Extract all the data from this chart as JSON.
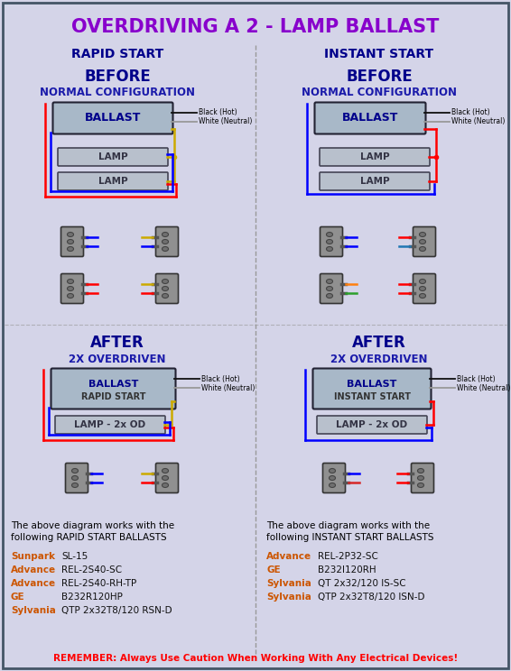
{
  "title": "OVERDRIVING A 2 - LAMP BALLAST",
  "title_color": "#8800CC",
  "bg_color": "#D4D4E8",
  "left_header": "RAPID START",
  "right_header": "INSTANT START",
  "header_color": "#00008B",
  "before_color": "#00008B",
  "normal_config_color": "#1a1aaa",
  "after_color": "#00008B",
  "overdriven_color": "#1a1aaa",
  "ballast_fill": "#A8B8C8",
  "ballast_text": "BALLAST",
  "lamp_fill": "#B8C0CC",
  "lamp_text": "LAMP",
  "rapid_start_text": "RAPID START",
  "instant_start_text": "INSTANT START",
  "lamp_od_text": "LAMP - 2x OD",
  "wire_red": "#FF0000",
  "wire_blue": "#0000FF",
  "wire_yellow": "#CCAA00",
  "wire_black": "#111111",
  "wire_gray": "#999999",
  "left_ballast_list_intro1": "The above diagram works with the",
  "left_ballast_list_intro2": "following RAPID START BALLASTS",
  "right_ballast_list_intro1": "The above diagram works with the",
  "right_ballast_list_intro2": "following INSTANT START BALLASTS",
  "left_ballasts": [
    [
      "Sunpark",
      "SL-15"
    ],
    [
      "Advance",
      "REL-2S40-SC"
    ],
    [
      "Advance",
      "REL-2S40-RH-TP"
    ],
    [
      "GE",
      "B232R120HP"
    ],
    [
      "Sylvania",
      "QTP 2x32T8/120 RSN-D"
    ]
  ],
  "right_ballasts": [
    [
      "Advance",
      "REL-2P32-SC"
    ],
    [
      "GE",
      "B232I120RH"
    ],
    [
      "Sylvania",
      "QT 2x32/120 IS-SC"
    ],
    [
      "Sylvania",
      "QTP 2x32T8/120 ISN-D"
    ]
  ],
  "brand_color": "#CC5500",
  "model_color": "#111111",
  "remember_text": "REMEMBER: Always Use Caution When Working With Any Electrical Devices!",
  "remember_color": "#FF0000",
  "divider_color": "#999999",
  "black_hot_label": "Black (Hot)",
  "white_neutral_label": "White (Neutral)"
}
